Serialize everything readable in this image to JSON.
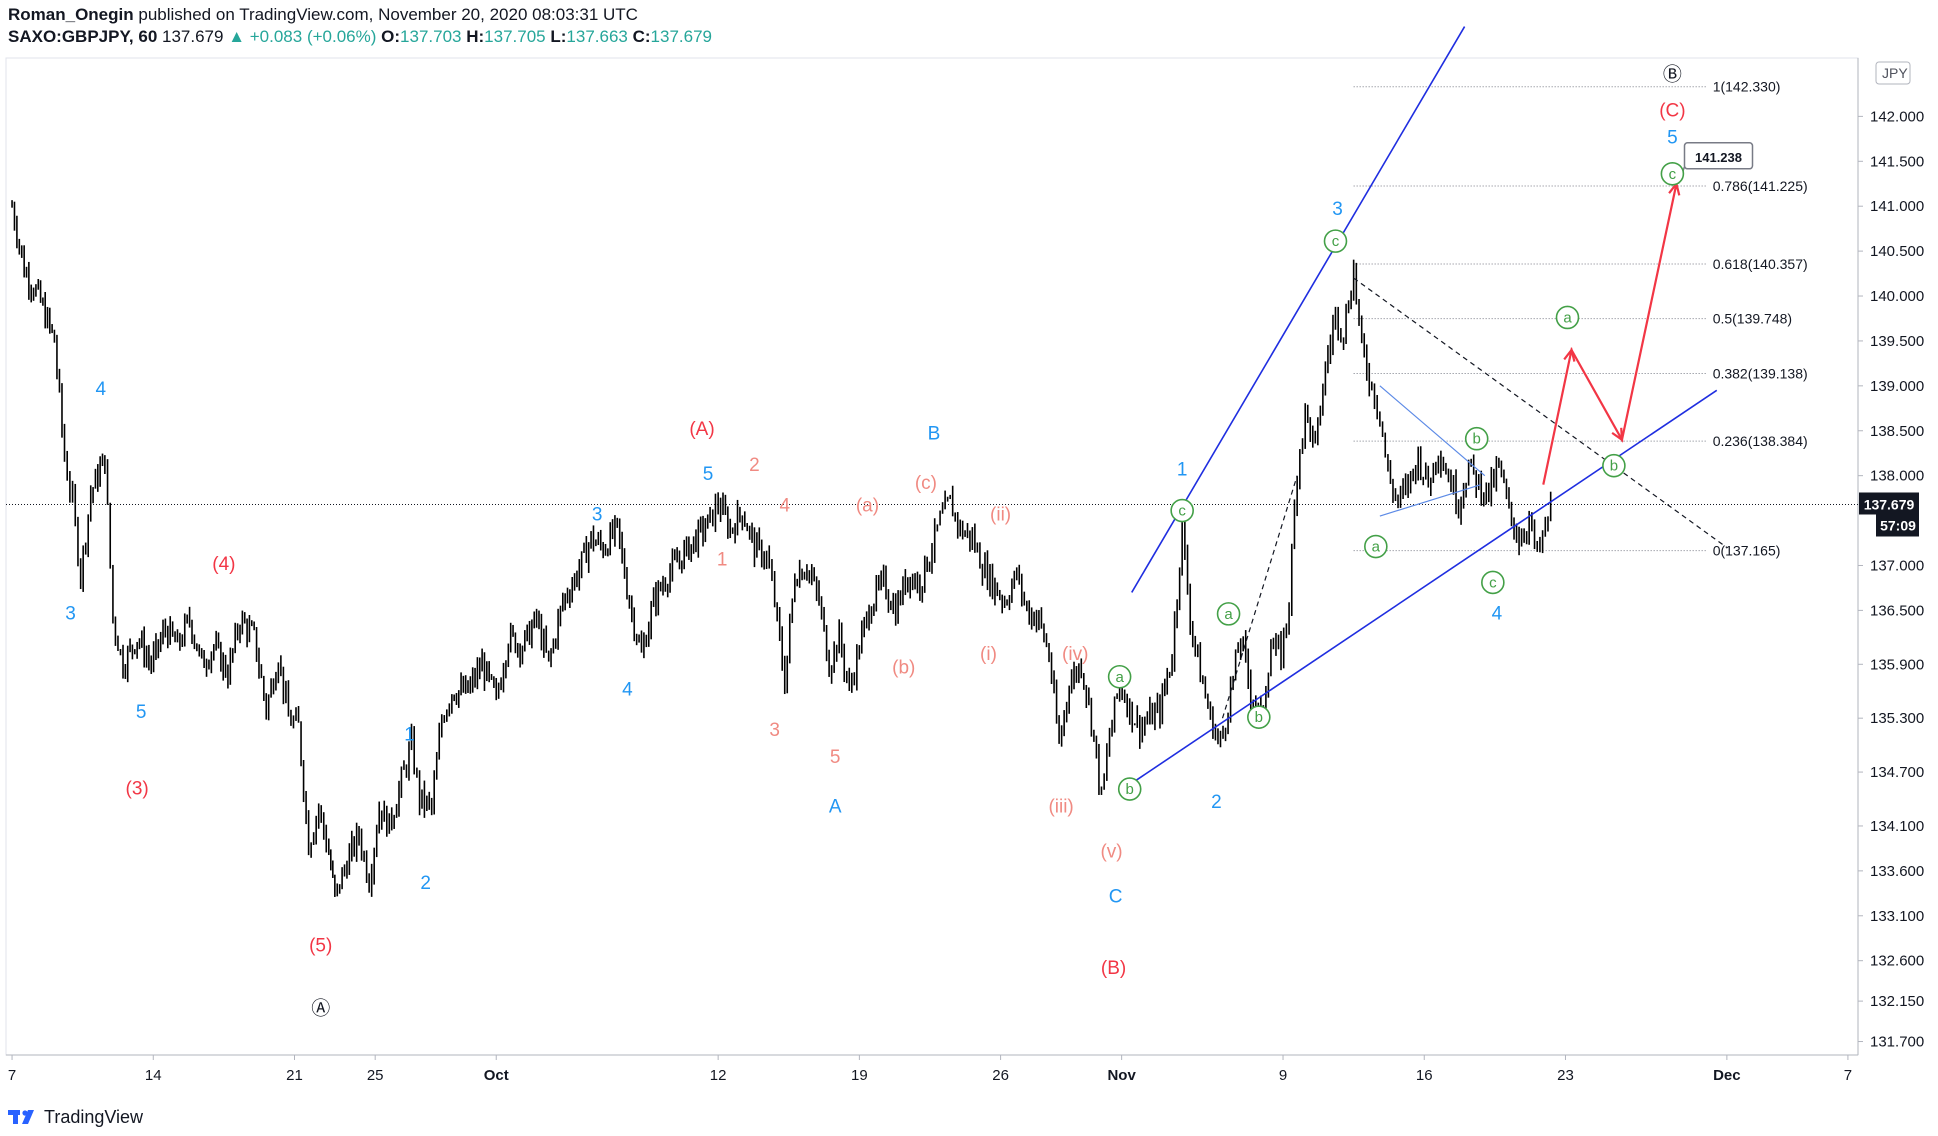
{
  "header": {
    "author": "Roman_Onegin",
    "published_text": "published on TradingView.com, November 20, 2020 08:03:31 UTC",
    "symbol": "SAXO:GBPJPY, 60",
    "last": "137.679",
    "change": "▲ +0.083 (+0.06%)",
    "o_label": "O:",
    "o_value": "137.703",
    "h_label": "H:",
    "h_value": "137.705",
    "l_label": "L:",
    "l_value": "137.663",
    "c_label": "C:",
    "c_value": "137.679"
  },
  "footer": {
    "brand": "TradingView"
  },
  "colors": {
    "candle": "#000000",
    "axis_text": "#131722",
    "red": "#f23645",
    "blue": "#2196f3",
    "salmon": "#f08a82",
    "green": "#43a047",
    "channel": "#1f2ee0",
    "fib": "#787b86"
  },
  "chart_data": {
    "type": "candlestick",
    "currency_label": "JPY",
    "last_price_label": "137.679",
    "countdown_label": "57:09",
    "y_ticks": [
      "142.000",
      "141.500",
      "141.000",
      "140.500",
      "140.000",
      "139.500",
      "139.000",
      "138.500",
      "138.000",
      "137.000",
      "136.500",
      "135.900",
      "135.300",
      "134.700",
      "134.100",
      "133.600",
      "133.100",
      "132.600",
      "132.150",
      "131.700"
    ],
    "y_range": [
      131.55,
      142.65
    ],
    "x_ticks": [
      {
        "label": "7",
        "day": 0
      },
      {
        "label": "14",
        "day": 7
      },
      {
        "label": "21",
        "day": 14
      },
      {
        "label": "25",
        "day": 18
      },
      {
        "label": "Oct",
        "day": 24
      },
      {
        "label": "12",
        "day": 35
      },
      {
        "label": "19",
        "day": 42
      },
      {
        "label": "26",
        "day": 49
      },
      {
        "label": "Nov",
        "day": 55
      },
      {
        "label": "9",
        "day": 63
      },
      {
        "label": "16",
        "day": 70
      },
      {
        "label": "23",
        "day": 77
      },
      {
        "label": "Dec",
        "day": 85
      },
      {
        "label": "7",
        "day": 91
      }
    ],
    "path_points": [
      [
        0,
        141.0
      ],
      [
        0.6,
        140.3
      ],
      [
        1.3,
        140.0
      ],
      [
        2.1,
        139.5
      ],
      [
        2.6,
        138.2
      ],
      [
        3.0,
        137.7
      ],
      [
        3.4,
        136.9
      ],
      [
        3.9,
        137.8
      ],
      [
        4.6,
        138.2
      ],
      [
        5.0,
        136.4
      ],
      [
        5.5,
        135.9
      ],
      [
        6.2,
        136.2
      ],
      [
        6.9,
        135.9
      ],
      [
        7.6,
        136.3
      ],
      [
        8.2,
        136.1
      ],
      [
        8.8,
        136.4
      ],
      [
        9.4,
        135.9
      ],
      [
        10.0,
        136.1
      ],
      [
        10.7,
        135.8
      ],
      [
        11.3,
        136.4
      ],
      [
        12.0,
        136.2
      ],
      [
        12.6,
        135.4
      ],
      [
        13.2,
        136.0
      ],
      [
        13.7,
        135.3
      ],
      [
        14.2,
        135.2
      ],
      [
        14.7,
        133.9
      ],
      [
        15.2,
        134.3
      ],
      [
        15.7,
        133.8
      ],
      [
        16.0,
        133.3
      ],
      [
        16.6,
        133.7
      ],
      [
        17.2,
        134.0
      ],
      [
        17.7,
        133.5
      ],
      [
        18.2,
        134.3
      ],
      [
        18.7,
        134.1
      ],
      [
        19.3,
        134.6
      ],
      [
        19.8,
        135.0
      ],
      [
        20.2,
        134.4
      ],
      [
        20.8,
        134.3
      ],
      [
        21.3,
        135.3
      ],
      [
        21.8,
        135.6
      ],
      [
        22.6,
        135.6
      ],
      [
        23.3,
        135.9
      ],
      [
        24.0,
        135.5
      ],
      [
        24.6,
        136.2
      ],
      [
        25.3,
        136.1
      ],
      [
        26.0,
        136.4
      ],
      [
        26.6,
        135.9
      ],
      [
        27.3,
        136.6
      ],
      [
        28.0,
        136.9
      ],
      [
        28.7,
        137.3
      ],
      [
        29.3,
        137.2
      ],
      [
        30.0,
        137.4
      ],
      [
        30.6,
        136.6
      ],
      [
        31.2,
        136.0
      ],
      [
        31.8,
        136.6
      ],
      [
        32.5,
        136.9
      ],
      [
        33.2,
        137.1
      ],
      [
        33.9,
        137.3
      ],
      [
        34.6,
        137.5
      ],
      [
        35.0,
        137.7
      ],
      [
        35.6,
        137.4
      ],
      [
        36.2,
        137.6
      ],
      [
        36.8,
        137.2
      ],
      [
        37.4,
        137.1
      ],
      [
        37.8,
        136.6
      ],
      [
        38.3,
        135.7
      ],
      [
        38.8,
        136.9
      ],
      [
        39.4,
        137.0
      ],
      [
        40.0,
        136.6
      ],
      [
        40.5,
        135.9
      ],
      [
        41.0,
        136.2
      ],
      [
        41.5,
        135.6
      ],
      [
        42.0,
        136.1
      ],
      [
        42.6,
        136.6
      ],
      [
        43.2,
        136.8
      ],
      [
        43.8,
        136.5
      ],
      [
        44.4,
        136.9
      ],
      [
        45.0,
        136.8
      ],
      [
        45.6,
        137.2
      ],
      [
        46.0,
        137.5
      ],
      [
        46.5,
        137.7
      ],
      [
        47.0,
        137.4
      ],
      [
        47.6,
        137.3
      ],
      [
        48.1,
        137.0
      ],
      [
        48.6,
        136.8
      ],
      [
        49.2,
        136.6
      ],
      [
        49.8,
        136.9
      ],
      [
        50.3,
        136.5
      ],
      [
        50.9,
        136.4
      ],
      [
        51.4,
        136.0
      ],
      [
        51.9,
        135.0
      ],
      [
        52.4,
        135.7
      ],
      [
        53.0,
        135.9
      ],
      [
        53.5,
        135.3
      ],
      [
        54.0,
        134.4
      ],
      [
        54.4,
        135.1
      ],
      [
        54.9,
        135.7
      ],
      [
        55.4,
        135.4
      ],
      [
        55.9,
        135.2
      ],
      [
        56.4,
        135.3
      ],
      [
        56.9,
        135.4
      ],
      [
        57.5,
        136.0
      ],
      [
        58.0,
        137.4
      ],
      [
        58.4,
        136.4
      ],
      [
        58.9,
        135.8
      ],
      [
        59.4,
        135.3
      ],
      [
        59.9,
        135.0
      ],
      [
        60.4,
        135.6
      ],
      [
        60.9,
        136.2
      ],
      [
        61.4,
        135.6
      ],
      [
        61.9,
        135.3
      ],
      [
        62.4,
        136.1
      ],
      [
        62.9,
        136.0
      ],
      [
        63.3,
        136.6
      ],
      [
        63.7,
        138.1
      ],
      [
        64.1,
        138.7
      ],
      [
        64.6,
        138.3
      ],
      [
        65.1,
        139.2
      ],
      [
        65.6,
        139.8
      ],
      [
        66.0,
        139.6
      ],
      [
        66.5,
        140.3
      ],
      [
        66.9,
        139.4
      ],
      [
        67.4,
        139.0
      ],
      [
        67.8,
        138.7
      ],
      [
        68.2,
        138.0
      ],
      [
        68.7,
        137.7
      ],
      [
        69.2,
        137.9
      ],
      [
        69.7,
        138.2
      ],
      [
        70.2,
        137.9
      ],
      [
        70.7,
        138.3
      ],
      [
        71.2,
        138.0
      ],
      [
        71.7,
        137.7
      ],
      [
        72.2,
        138.1
      ],
      [
        72.7,
        137.9
      ],
      [
        73.2,
        137.8
      ],
      [
        73.7,
        138.1
      ],
      [
        74.2,
        137.6
      ],
      [
        74.7,
        137.3
      ],
      [
        75.2,
        137.5
      ],
      [
        75.6,
        137.1
      ],
      [
        76.0,
        137.4
      ],
      [
        76.4,
        137.8
      ]
    ],
    "fib_levels": [
      {
        "ratio": "1",
        "label": "1(142.330)",
        "price": 142.33
      },
      {
        "ratio": "0.786",
        "label": "0.786(141.225)",
        "price": 141.225
      },
      {
        "ratio": "0.618",
        "label": "0.618(140.357)",
        "price": 140.357
      },
      {
        "ratio": "0.5",
        "label": "0.5(139.748)",
        "price": 139.748
      },
      {
        "ratio": "0.382",
        "label": "0.382(139.138)",
        "price": 139.138
      },
      {
        "ratio": "0.236",
        "label": "0.236(138.384)",
        "price": 138.384
      },
      {
        "ratio": "0",
        "label": "0(137.165)",
        "price": 137.165
      }
    ],
    "target_label": "141.238",
    "wave_labels": [
      {
        "text": "4",
        "day": 4.4,
        "price": 138.9,
        "color": "blue"
      },
      {
        "text": "3",
        "day": 2.9,
        "price": 136.4,
        "color": "blue"
      },
      {
        "text": "5",
        "day": 6.4,
        "price": 135.3,
        "color": "blue"
      },
      {
        "text": "(4)",
        "day": 10.5,
        "price": 136.95,
        "color": "red"
      },
      {
        "text": "(3)",
        "day": 6.2,
        "price": 134.45,
        "color": "red"
      },
      {
        "text": "(5)",
        "day": 15.3,
        "price": 132.7,
        "color": "red"
      },
      {
        "text": "Ⓐ",
        "day": 15.3,
        "price": 132.0,
        "color": "black"
      },
      {
        "text": "1",
        "day": 19.7,
        "price": 135.05,
        "color": "blue"
      },
      {
        "text": "2",
        "day": 20.5,
        "price": 133.4,
        "color": "blue"
      },
      {
        "text": "3",
        "day": 29.0,
        "price": 137.5,
        "color": "blue"
      },
      {
        "text": "4",
        "day": 30.5,
        "price": 135.55,
        "color": "blue"
      },
      {
        "text": "5",
        "day": 34.5,
        "price": 137.95,
        "color": "blue"
      },
      {
        "text": "(A)",
        "day": 34.2,
        "price": 138.45,
        "color": "red"
      },
      {
        "text": "2",
        "day": 36.8,
        "price": 138.05,
        "color": "salmon"
      },
      {
        "text": "4",
        "day": 38.3,
        "price": 137.6,
        "color": "salmon"
      },
      {
        "text": "1",
        "day": 35.2,
        "price": 137.0,
        "color": "salmon"
      },
      {
        "text": "3",
        "day": 37.8,
        "price": 135.1,
        "color": "salmon"
      },
      {
        "text": "5",
        "day": 40.8,
        "price": 134.8,
        "color": "salmon"
      },
      {
        "text": "A",
        "day": 40.8,
        "price": 134.25,
        "color": "blue"
      },
      {
        "text": "B",
        "day": 45.7,
        "price": 138.4,
        "color": "blue"
      },
      {
        "text": "(c)",
        "day": 45.3,
        "price": 137.85,
        "color": "salmon"
      },
      {
        "text": "(a)",
        "day": 42.4,
        "price": 137.6,
        "color": "salmon"
      },
      {
        "text": "(b)",
        "day": 44.2,
        "price": 135.8,
        "color": "salmon"
      },
      {
        "text": "(ii)",
        "day": 49.0,
        "price": 137.5,
        "color": "salmon"
      },
      {
        "text": "(i)",
        "day": 48.4,
        "price": 135.95,
        "color": "salmon"
      },
      {
        "text": "(iv)",
        "day": 52.7,
        "price": 135.95,
        "color": "salmon"
      },
      {
        "text": "(iii)",
        "day": 52.0,
        "price": 134.25,
        "color": "salmon"
      },
      {
        "text": "(v)",
        "day": 54.5,
        "price": 133.75,
        "color": "salmon"
      },
      {
        "text": "C",
        "day": 54.7,
        "price": 133.25,
        "color": "blue"
      },
      {
        "text": "(B)",
        "day": 54.6,
        "price": 132.45,
        "color": "red"
      },
      {
        "text": "1",
        "day": 58.0,
        "price": 138.0,
        "color": "blue"
      },
      {
        "text": "2",
        "day": 59.7,
        "price": 134.3,
        "color": "blue"
      },
      {
        "text": "3",
        "day": 65.7,
        "price": 140.9,
        "color": "blue"
      },
      {
        "text": "4",
        "day": 73.6,
        "price": 136.4,
        "color": "blue"
      },
      {
        "text": "5",
        "day": 82.3,
        "price": 141.7,
        "color": "blue"
      },
      {
        "text": "(C)",
        "day": 82.3,
        "price": 142.0,
        "color": "red"
      },
      {
        "text": "Ⓑ",
        "day": 82.3,
        "price": 142.4,
        "color": "black"
      }
    ],
    "circled_labels": [
      {
        "text": "c",
        "day": 58.0,
        "price": 137.6,
        "color": "green"
      },
      {
        "text": "a",
        "day": 54.9,
        "price": 135.75,
        "color": "green"
      },
      {
        "text": "b",
        "day": 55.4,
        "price": 134.5,
        "color": "green"
      },
      {
        "text": "a",
        "day": 60.3,
        "price": 136.45,
        "color": "green"
      },
      {
        "text": "b",
        "day": 61.8,
        "price": 135.3,
        "color": "green"
      },
      {
        "text": "c",
        "day": 65.6,
        "price": 140.6,
        "color": "green"
      },
      {
        "text": "a",
        "day": 67.6,
        "price": 137.2,
        "color": "green"
      },
      {
        "text": "b",
        "day": 72.6,
        "price": 138.4,
        "color": "green"
      },
      {
        "text": "c",
        "day": 73.4,
        "price": 136.8,
        "color": "green"
      },
      {
        "text": "a",
        "day": 77.1,
        "price": 139.75,
        "color": "green"
      },
      {
        "text": "b",
        "day": 79.4,
        "price": 138.1,
        "color": "green"
      },
      {
        "text": "c",
        "day": 82.3,
        "price": 141.35,
        "color": "green"
      }
    ],
    "channel_lines": [
      {
        "from": [
          55.5,
          136.7
        ],
        "to": [
          72.0,
          143.0
        ]
      },
      {
        "from": [
          55.0,
          134.5
        ],
        "to": [
          84.5,
          138.95
        ]
      }
    ],
    "triangle_lines": [
      {
        "from": [
          67.8,
          139.0
        ],
        "to": [
          73.0,
          138.0
        ],
        "color": "#5c8ae6"
      },
      {
        "from": [
          67.8,
          137.55
        ],
        "to": [
          72.8,
          137.9
        ],
        "color": "#5c8ae6"
      }
    ],
    "dashed_lines": [
      {
        "from": [
          66.5,
          140.2
        ],
        "to": [
          85.0,
          137.2
        ]
      },
      {
        "from": [
          60.0,
          135.3
        ],
        "to": [
          63.7,
          138.0
        ]
      }
    ],
    "projection_path": [
      [
        75.9,
        137.9
      ],
      [
        77.3,
        139.4
      ],
      [
        79.8,
        138.4
      ],
      [
        82.5,
        141.25
      ]
    ],
    "x_day_range": [
      -0.3,
      91.5
    ]
  }
}
